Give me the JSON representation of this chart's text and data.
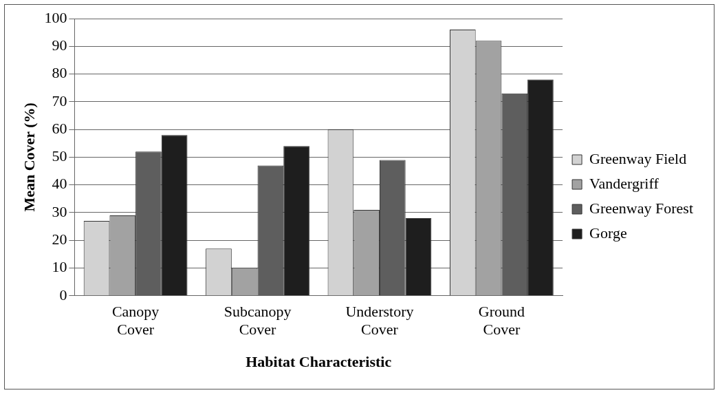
{
  "chart_data": {
    "type": "bar",
    "xlabel": "Habitat Characteristic",
    "ylabel": "Mean Cover (%)",
    "categories": [
      "Canopy Cover",
      "Subcanopy Cover",
      "Understory Cover",
      "Ground Cover"
    ],
    "series": [
      {
        "name": "Greenway Field",
        "color": "#d2d2d2",
        "values": [
          27,
          17,
          60,
          96
        ]
      },
      {
        "name": "Vandergriff",
        "color": "#a2a2a2",
        "values": [
          29,
          10,
          31,
          92
        ]
      },
      {
        "name": "Greenway Forest",
        "color": "#5e5e5e",
        "values": [
          52,
          47,
          49,
          73
        ]
      },
      {
        "name": "Gorge",
        "color": "#1e1e1e",
        "values": [
          58,
          54,
          28,
          78
        ]
      }
    ],
    "ylim": [
      0,
      100
    ],
    "yticks": [
      0,
      10,
      20,
      30,
      40,
      50,
      60,
      70,
      80,
      90,
      100
    ],
    "grid": "y",
    "legend": "right"
  }
}
